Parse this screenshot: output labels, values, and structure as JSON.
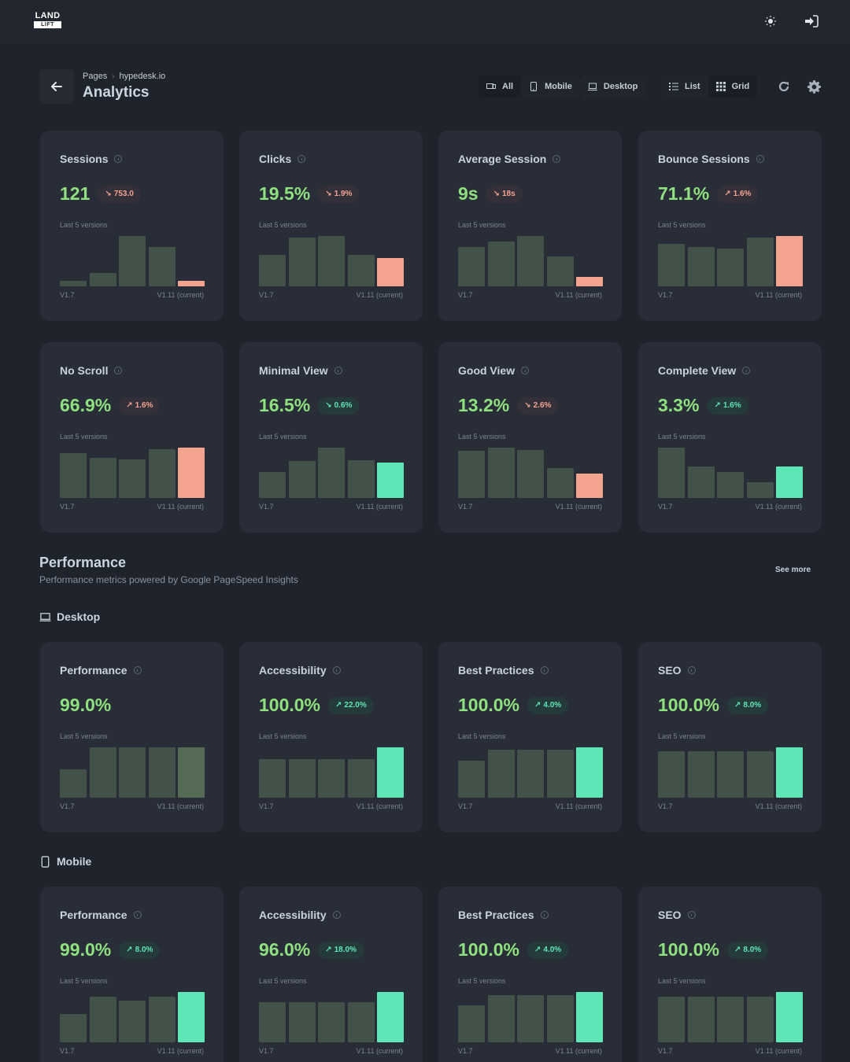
{
  "app": {
    "logo_top": "LAND",
    "logo_bottom": "LIFT",
    "icons": [
      "sun-icon",
      "sign-in-icon"
    ]
  },
  "header": {
    "breadcrumb": [
      "Pages",
      "hypedesk.io"
    ],
    "title": "Analytics"
  },
  "toolbar": {
    "device_filter": [
      {
        "label": "All",
        "icon": "devices-icon",
        "active": true
      },
      {
        "label": "Mobile",
        "icon": "mobile-icon",
        "active": false
      },
      {
        "label": "Desktop",
        "icon": "laptop-icon",
        "active": false
      }
    ],
    "view_mode": [
      {
        "label": "List",
        "icon": "list-icon",
        "active": false
      },
      {
        "label": "Grid",
        "icon": "grid-icon",
        "active": true
      }
    ],
    "refresh_icon": "refresh-icon",
    "settings_icon": "gear-icon"
  },
  "colors": {
    "value_green": "#8fe07f",
    "bad": "#f4a38f",
    "good": "#5ee6b6",
    "bar_past": "#435248",
    "bar_current_neutral": "#556b56"
  },
  "sub_label": "Last 5 versions",
  "x_first": "V1.7",
  "x_last": "V1.11 (current)",
  "analytics_cards": [
    {
      "title": "Sessions",
      "value": "121",
      "delta": "753.0",
      "direction": "down",
      "status": "bad",
      "bars": [
        11,
        27,
        100,
        78,
        11
      ]
    },
    {
      "title": "Clicks",
      "value": "19.5%",
      "delta": "1.9%",
      "direction": "down",
      "status": "bad",
      "bars": [
        62,
        97,
        100,
        62,
        57
      ]
    },
    {
      "title": "Average Session",
      "value": "9s",
      "delta": "18s",
      "direction": "down",
      "status": "bad",
      "bars": [
        78,
        89,
        100,
        59,
        19
      ]
    },
    {
      "title": "Bounce Sessions",
      "value": "71.1%",
      "delta": "1.6%",
      "direction": "up",
      "status": "bad",
      "bars": [
        84,
        78,
        75,
        97,
        100
      ]
    },
    {
      "title": "No Scroll",
      "value": "66.9%",
      "delta": "1.6%",
      "direction": "up",
      "status": "bad",
      "bars": [
        89,
        80,
        77,
        97,
        100
      ]
    },
    {
      "title": "Minimal View",
      "value": "16.5%",
      "delta": "0.6%",
      "direction": "down",
      "status": "good",
      "bars": [
        52,
        73,
        100,
        75,
        71
      ]
    },
    {
      "title": "Good View",
      "value": "13.2%",
      "delta": "2.6%",
      "direction": "down",
      "status": "bad",
      "bars": [
        94,
        100,
        95,
        60,
        49
      ]
    },
    {
      "title": "Complete View",
      "value": "3.3%",
      "delta": "1.6%",
      "direction": "up",
      "status": "good",
      "bars": [
        100,
        63,
        51,
        32,
        62
      ]
    }
  ],
  "performance": {
    "title": "Performance",
    "subtitle": "Performance metrics powered by Google PageSpeed Insights",
    "see_more": "See more",
    "groups": [
      {
        "label": "Desktop",
        "icon": "laptop-icon",
        "cards": [
          {
            "title": "Performance",
            "value": "99.0%",
            "delta": "",
            "direction": "",
            "status": "neutral",
            "bars": [
              57,
              100,
              100,
              100,
              100
            ]
          },
          {
            "title": "Accessibility",
            "value": "100.0%",
            "delta": "22.0%",
            "direction": "up",
            "status": "good",
            "bars": [
              76,
              76,
              76,
              76,
              100
            ]
          },
          {
            "title": "Best Practices",
            "value": "100.0%",
            "delta": "4.0%",
            "direction": "up",
            "status": "good",
            "bars": [
              73,
              95,
              95,
              95,
              100
            ]
          },
          {
            "title": "SEO",
            "value": "100.0%",
            "delta": "8.0%",
            "direction": "up",
            "status": "good",
            "bars": [
              92,
              92,
              92,
              92,
              100
            ]
          }
        ]
      },
      {
        "label": "Mobile",
        "icon": "mobile-icon",
        "cards": [
          {
            "title": "Performance",
            "value": "99.0%",
            "delta": "8.0%",
            "direction": "up",
            "status": "good",
            "bars": [
              57,
              91,
              83,
              91,
              100
            ]
          },
          {
            "title": "Accessibility",
            "value": "96.0%",
            "delta": "18.0%",
            "direction": "up",
            "status": "good",
            "bars": [
              80,
              80,
              80,
              80,
              100
            ]
          },
          {
            "title": "Best Practices",
            "value": "100.0%",
            "delta": "4.0%",
            "direction": "up",
            "status": "good",
            "bars": [
              74,
              94,
              94,
              94,
              100
            ]
          },
          {
            "title": "SEO",
            "value": "100.0%",
            "delta": "8.0%",
            "direction": "up",
            "status": "good",
            "bars": [
              91,
              91,
              91,
              91,
              100
            ]
          }
        ]
      }
    ]
  }
}
